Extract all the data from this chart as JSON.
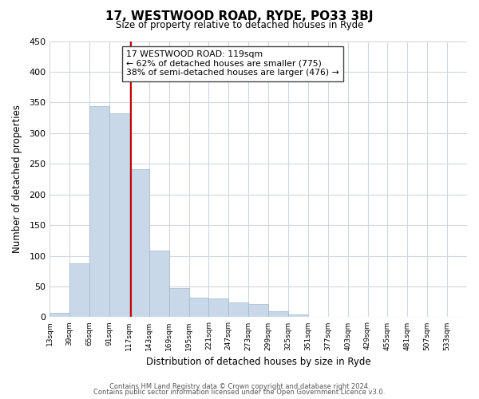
{
  "title": "17, WESTWOOD ROAD, RYDE, PO33 3BJ",
  "subtitle": "Size of property relative to detached houses in Ryde",
  "xlabel": "Distribution of detached houses by size in Ryde",
  "ylabel": "Number of detached properties",
  "footer_line1": "Contains HM Land Registry data © Crown copyright and database right 2024.",
  "footer_line2": "Contains public sector information licensed under the Open Government Licence v3.0.",
  "bar_edges": [
    13,
    39,
    65,
    91,
    117,
    143,
    169,
    195,
    221,
    247,
    273,
    299,
    325,
    351,
    377,
    403,
    429,
    455,
    481,
    507,
    533,
    559
  ],
  "bar_heights": [
    7,
    88,
    344,
    332,
    241,
    108,
    47,
    32,
    30,
    24,
    21,
    10,
    5,
    1,
    1,
    1,
    0,
    0,
    0,
    0,
    1
  ],
  "bar_color": "#c8d8e8",
  "bar_edge_color": "#a0b8cc",
  "property_size": 119,
  "property_line_color": "#cc0000",
  "annotation_line1": "17 WESTWOOD ROAD: 119sqm",
  "annotation_line2": "← 62% of detached houses are smaller (775)",
  "annotation_line3": "38% of semi-detached houses are larger (476) →",
  "annotation_box_color": "#ffffff",
  "annotation_box_edge": "#444444",
  "ylim": [
    0,
    450
  ],
  "yticks": [
    0,
    50,
    100,
    150,
    200,
    250,
    300,
    350,
    400,
    450
  ],
  "tick_labels": [
    "13sqm",
    "39sqm",
    "65sqm",
    "91sqm",
    "117sqm",
    "143sqm",
    "169sqm",
    "195sqm",
    "221sqm",
    "247sqm",
    "273sqm",
    "299sqm",
    "325sqm",
    "351sqm",
    "377sqm",
    "403sqm",
    "429sqm",
    "455sqm",
    "481sqm",
    "507sqm",
    "533sqm"
  ],
  "grid_color": "#d0d8e0",
  "background_color": "#ffffff"
}
